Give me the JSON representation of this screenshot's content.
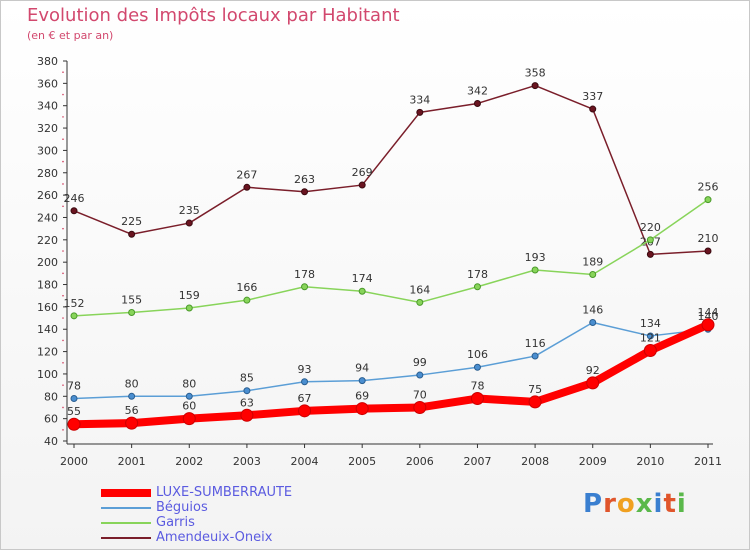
{
  "title": "Evolution des Impôts locaux par Habitant",
  "subtitle": "(en € et par an)",
  "logo_text": "Proxiti",
  "chart_data": {
    "type": "line",
    "title": "Evolution des Impôts locaux par Habitant",
    "subtitle": "(en € et par an)",
    "x": [
      "2000",
      "2001",
      "2002",
      "2003",
      "2004",
      "2005",
      "2006",
      "2007",
      "2008",
      "2009",
      "2010",
      "2011"
    ],
    "y_ticks": [
      "40",
      "60",
      "80",
      "100",
      "120",
      "140",
      "160",
      "180",
      "200",
      "220",
      "240",
      "260",
      "280",
      "300",
      "320",
      "340",
      "360",
      "380"
    ],
    "ylim": [
      40,
      380
    ],
    "grid": false,
    "legend_position": "bottom-left",
    "series": [
      {
        "name": "Amendeuix-Oneix",
        "color": "#7a1e2a",
        "values": [
          246,
          225,
          235,
          267,
          263,
          269,
          334,
          342,
          358,
          337,
          207,
          210
        ]
      },
      {
        "name": "Garris",
        "color": "#88d45a",
        "values": [
          152,
          155,
          159,
          166,
          178,
          174,
          164,
          178,
          193,
          189,
          220,
          256
        ]
      },
      {
        "name": "Béguios",
        "color": "#5b9ed6",
        "values": [
          78,
          80,
          80,
          85,
          93,
          94,
          99,
          106,
          116,
          146,
          134,
          140
        ]
      },
      {
        "name": "LUXE-SUMBERRAUTE",
        "color": "#ff0000",
        "values": [
          55,
          56,
          60,
          63,
          67,
          69,
          70,
          78,
          75,
          92,
          121,
          144
        ]
      }
    ]
  },
  "legend": [
    {
      "label": "LUXE-SUMBERRAUTE",
      "color": "#ff0000"
    },
    {
      "label": "Béguios",
      "color": "#5b9ed6"
    },
    {
      "label": "Garris",
      "color": "#88d45a"
    },
    {
      "label": "Amendeuix-Oneix",
      "color": "#7a1e2a"
    }
  ]
}
